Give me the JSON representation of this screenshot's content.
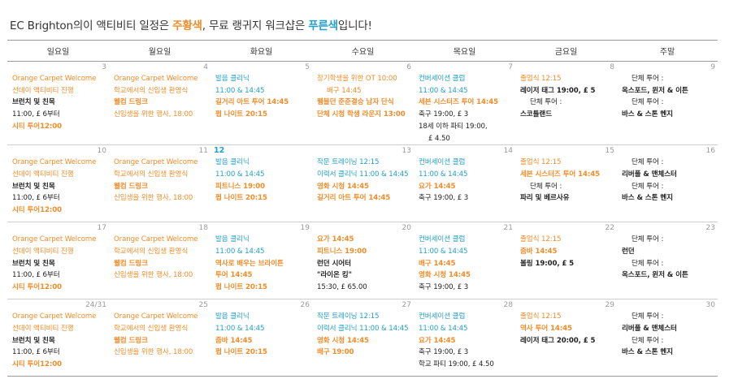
{
  "heading": {
    "prefix": "EC Brighton의이 액티비티 일정은 ",
    "orange_word": "주황색",
    "middle": ", 무료 랭귀지 워크샵은 ",
    "blue_word": "푸른색",
    "suffix": "입니다!"
  },
  "colors": {
    "orange": "#f28c28",
    "blue": "#21a0c9",
    "text": "#222222"
  },
  "days": [
    "일요일",
    "월요일",
    "화요일",
    "수요일",
    "목요일",
    "금요일",
    "주말"
  ],
  "weeks": [
    [
      {
        "day": "3",
        "events": [
          {
            "text": "Orange Carpet Welcome",
            "color": "orange"
          },
          {
            "text": "선데이 액티비티 진행",
            "color": "orange"
          },
          {
            "text": "브런치 및 친목",
            "color": "black",
            "bold": true
          },
          {
            "text": "11:00, £ 6부터",
            "color": "black"
          },
          {
            "text": "시티 투어12:00",
            "color": "orange",
            "bold": true
          }
        ]
      },
      {
        "day": "4",
        "events": [
          {
            "text": "Orange Carpet Welcome",
            "color": "orange"
          },
          {
            "text": "학교에서의 신입생 환영식",
            "color": "orange"
          },
          {
            "text": "웰컴 드링크",
            "color": "orange",
            "bold": true
          },
          {
            "text": "신입생을 위한 행사, 18:00",
            "color": "orange"
          }
        ]
      },
      {
        "day": "5",
        "events": [
          {
            "text": "발음 클리닉",
            "color": "blue"
          },
          {
            "text": "11:00 & 14:45",
            "color": "blue"
          },
          {
            "text": "길거리 아트 투어 14:45",
            "color": "orange",
            "bold": true
          },
          {
            "text": "펍 나이트 20:15",
            "color": "orange",
            "bold": true
          }
        ]
      },
      {
        "day": "6",
        "events": [
          {
            "text": "장기학생을 위한 OT 10:00",
            "color": "orange"
          },
          {
            "text": "배구 14:45",
            "color": "orange",
            "indent": true
          },
          {
            "text": "웸블던 준준결승 남자 단식",
            "color": "orange",
            "bold": true
          },
          {
            "text": "단체 시청 학생 라운지 13:00",
            "color": "orange",
            "bold": true
          }
        ]
      },
      {
        "day": "7",
        "events": [
          {
            "text": "컨버세이션 클럽",
            "color": "blue"
          },
          {
            "text": "11:00 & 14:45",
            "color": "blue"
          },
          {
            "text": "세븐 시스터즈 투어 14:45",
            "color": "orange",
            "bold": true
          },
          {
            "text": "축구 19:00, £ 3",
            "color": "black"
          },
          {
            "text": "18세 이하 파티 19:00,",
            "color": "black"
          },
          {
            "text": "£ 4.50",
            "color": "black",
            "indent": true
          }
        ]
      },
      {
        "day": "8",
        "events": [
          {
            "text": "졸업식 12:15",
            "color": "orange"
          },
          {
            "text": "레이저 태그 19:00, £ 5",
            "color": "black",
            "bold": true
          },
          {
            "text": "단체 투어 :",
            "color": "black",
            "indent": true
          },
          {
            "text": "스코틀랜드",
            "color": "black",
            "bold": true
          }
        ]
      },
      {
        "day": "9",
        "events": [
          {
            "text": "단체 투어 :",
            "color": "black",
            "indent": true
          },
          {
            "text": "옥스포드, 윈저 & 이튼",
            "color": "black",
            "bold": true
          },
          {
            "text": "단체 투어 :",
            "color": "black",
            "indent": true
          },
          {
            "text": "바스 & 스톤 헨지",
            "color": "black",
            "bold": true
          }
        ]
      }
    ],
    [
      {
        "day": "10",
        "events": [
          {
            "text": "Orange Carpet Welcome",
            "color": "orange"
          },
          {
            "text": "선데이 액티비티 진행",
            "color": "orange"
          },
          {
            "text": "브런치 및 친목",
            "color": "black",
            "bold": true
          },
          {
            "text": "11:00, £ 6부터",
            "color": "black"
          },
          {
            "text": "시티 투어12:00",
            "color": "orange",
            "bold": true
          }
        ]
      },
      {
        "day": "11",
        "events": [
          {
            "text": "Orange Carpet Welcome",
            "color": "orange"
          },
          {
            "text": "학교에서의 신입생 환영식",
            "color": "orange"
          },
          {
            "text": "웰컴 드링크",
            "color": "orange",
            "bold": true
          },
          {
            "text": "신입생을 위한 행사, 18:00",
            "color": "orange"
          }
        ]
      },
      {
        "day": "12",
        "highlight": true,
        "events": [
          {
            "text": "발음 클리닉",
            "color": "blue"
          },
          {
            "text": "11:00 & 14:45",
            "color": "blue"
          },
          {
            "text": "피트니스 19:00",
            "color": "orange",
            "bold": true
          },
          {
            "text": "펍 나이트 20:15",
            "color": "orange",
            "bold": true
          }
        ]
      },
      {
        "day": "13",
        "events": [
          {
            "text": "작문 트레이닝 12:15",
            "color": "blue"
          },
          {
            "text": "이력서 클리닉 11:00 & 14:45",
            "color": "blue"
          },
          {
            "text": "영화 시청 14:45",
            "color": "orange",
            "bold": true
          },
          {
            "text": "길거리 아트 투어 14:45",
            "color": "orange",
            "bold": true
          }
        ]
      },
      {
        "day": "14",
        "events": [
          {
            "text": "컨버세이션 클럽",
            "color": "blue"
          },
          {
            "text": "11:00 & 14:45",
            "color": "blue"
          },
          {
            "text": "요가 14:45",
            "color": "orange",
            "bold": true
          },
          {
            "text": "축구 19:00, £ 3",
            "color": "black"
          }
        ]
      },
      {
        "day": "15",
        "events": [
          {
            "text": "졸업식 12:15",
            "color": "orange"
          },
          {
            "text": "세븐 시스터즈 투어 14:45",
            "color": "orange",
            "bold": true
          },
          {
            "text": "단체 투어 :",
            "color": "black",
            "indent": true
          },
          {
            "text": "파리 및 베르사유",
            "color": "black",
            "bold": true
          }
        ]
      },
      {
        "day": "16",
        "events": [
          {
            "text": "단체 투어 :",
            "color": "black",
            "indent": true
          },
          {
            "text": "리버풀 & 맨체스터",
            "color": "black",
            "bold": true
          },
          {
            "text": "단체 투어 :",
            "color": "black",
            "indent": true
          },
          {
            "text": "바스 & 스톤 헨지",
            "color": "black",
            "bold": true
          }
        ]
      }
    ],
    [
      {
        "day": "17",
        "events": [
          {
            "text": "Orange Carpet Welcome",
            "color": "orange"
          },
          {
            "text": "선데이 액티비티 진행",
            "color": "orange"
          },
          {
            "text": "브런치 및 친목",
            "color": "black",
            "bold": true
          },
          {
            "text": "11:00, £ 6부터",
            "color": "black"
          },
          {
            "text": "시티 투어12:00",
            "color": "orange",
            "bold": true
          }
        ]
      },
      {
        "day": "18",
        "events": [
          {
            "text": "Orange Carpet Welcome",
            "color": "orange"
          },
          {
            "text": "학교에서의 신입생 환영식",
            "color": "orange"
          },
          {
            "text": "웰컴 드링크",
            "color": "orange",
            "bold": true
          },
          {
            "text": "신입생을 위한 행사, 18:00",
            "color": "orange"
          }
        ]
      },
      {
        "day": "19",
        "events": [
          {
            "text": "발음 클리닉",
            "color": "blue"
          },
          {
            "text": "11:00 & 14:45",
            "color": "blue"
          },
          {
            "text": "역사로 배우는 브라이튼",
            "color": "orange",
            "bold": true
          },
          {
            "text": "투어 14:45",
            "color": "orange",
            "bold": true
          },
          {
            "text": "펍 나이트 20:15",
            "color": "orange",
            "bold": true
          }
        ]
      },
      {
        "day": "20",
        "events": [
          {
            "text": "요가 14:45",
            "color": "orange",
            "bold": true
          },
          {
            "text": "피트니스 19:00",
            "color": "orange",
            "bold": true
          },
          {
            "text": "런던 시어터",
            "color": "black",
            "bold": true
          },
          {
            "text": "\"라이온 킹\"",
            "color": "black",
            "bold": true
          },
          {
            "text": "15:30, £ 65.00",
            "color": "black"
          }
        ]
      },
      {
        "day": "21",
        "events": [
          {
            "text": "컨버세이션 클럽",
            "color": "blue"
          },
          {
            "text": "11:00 & 14:45",
            "color": "blue"
          },
          {
            "text": "배구 14:45",
            "color": "orange",
            "bold": true
          },
          {
            "text": "영화 시청 14:45",
            "color": "orange",
            "bold": true
          },
          {
            "text": "축구 19:00, £ 3",
            "color": "black"
          }
        ]
      },
      {
        "day": "22",
        "events": [
          {
            "text": "졸업식 12:15",
            "color": "orange"
          },
          {
            "text": "줌바 14:45",
            "color": "orange",
            "bold": true
          },
          {
            "text": "볼링 19:00, £ 5",
            "color": "black",
            "bold": true
          }
        ]
      },
      {
        "day": "23",
        "events": [
          {
            "text": "단체 투어 :",
            "color": "black",
            "indent": true
          },
          {
            "text": "런던",
            "color": "black",
            "bold": true
          },
          {
            "text": "단체 투어 :",
            "color": "black",
            "indent": true
          },
          {
            "text": "옥스포드, 윈저 & 이튼",
            "color": "black",
            "bold": true
          }
        ]
      }
    ],
    [
      {
        "day": "24/31",
        "events": [
          {
            "text": "Orange Carpet Welcome",
            "color": "orange"
          },
          {
            "text": "선데이 액티비티 진행",
            "color": "orange"
          },
          {
            "text": "브런치 및 친목",
            "color": "black",
            "bold": true
          },
          {
            "text": "11:00, £ 6부터",
            "color": "black"
          },
          {
            "text": "시티 투어12:00",
            "color": "orange",
            "bold": true
          }
        ]
      },
      {
        "day": "25",
        "events": [
          {
            "text": "Orange Carpet Welcome",
            "color": "orange"
          },
          {
            "text": "학교에서의 신입생 환영식",
            "color": "orange"
          },
          {
            "text": "웰컴 드링크",
            "color": "orange",
            "bold": true
          },
          {
            "text": "신입생을 위한 행사, 18:00",
            "color": "orange"
          }
        ]
      },
      {
        "day": "26",
        "events": [
          {
            "text": "발음 클리닉",
            "color": "blue"
          },
          {
            "text": "11:00 & 14:45",
            "color": "blue"
          },
          {
            "text": "줌바 14:45",
            "color": "orange",
            "bold": true
          },
          {
            "text": "펍 나이트 20:15",
            "color": "orange",
            "bold": true
          }
        ]
      },
      {
        "day": "27",
        "events": [
          {
            "text": "작문 트레이닝 12:15",
            "color": "blue"
          },
          {
            "text": "이력서 클리닉 11:00 & 14:45",
            "color": "blue"
          },
          {
            "text": "영화 시청 14:45",
            "color": "orange",
            "bold": true
          },
          {
            "text": "배구 19:00",
            "color": "orange",
            "bold": true
          }
        ]
      },
      {
        "day": "28",
        "events": [
          {
            "text": "컨버세이션 클럽",
            "color": "blue"
          },
          {
            "text": "11:00 & 14:45",
            "color": "blue"
          },
          {
            "text": "요가 14:45",
            "color": "orange",
            "bold": true
          },
          {
            "text": "축구 19:00, £ 3",
            "color": "black"
          },
          {
            "text": "학교 파티 19:00, £ 4.50",
            "color": "black"
          }
        ]
      },
      {
        "day": "29",
        "events": [
          {
            "text": "졸업식 12:15",
            "color": "orange"
          },
          {
            "text": "역사 투어 14:45",
            "color": "orange",
            "bold": true
          },
          {
            "text": "레이저 태그 20:00, £ 5",
            "color": "black",
            "bold": true
          }
        ]
      },
      {
        "day": "30",
        "events": [
          {
            "text": "단체 투어 :",
            "color": "black",
            "indent": true
          },
          {
            "text": "리버풀 & 맨체스터",
            "color": "black",
            "bold": true
          },
          {
            "text": "단체 투어 :",
            "color": "black",
            "indent": true
          },
          {
            "text": "바스 & 스톤 헨지",
            "color": "black",
            "bold": true
          }
        ]
      }
    ]
  ]
}
